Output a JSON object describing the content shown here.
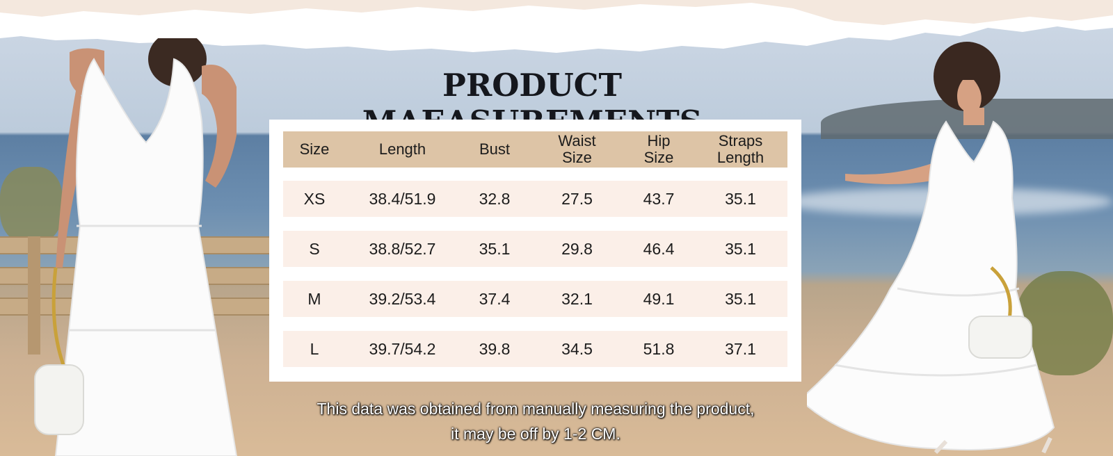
{
  "title": "PRODUCT MAEASUREMENTS",
  "table": {
    "headers": [
      "Size",
      "Length",
      "Bust",
      "Waist\nSize",
      "Hip\nSize",
      "Straps\nLength"
    ],
    "rows": [
      [
        "XS",
        "38.4/51.9",
        "32.8",
        "27.5",
        "43.7",
        "35.1"
      ],
      [
        "S",
        "38.8/52.7",
        "35.1",
        "29.8",
        "46.4",
        "35.1"
      ],
      [
        "M",
        "39.2/53.4",
        "37.4",
        "32.1",
        "49.1",
        "35.1"
      ],
      [
        "L",
        "39.7/54.2",
        "39.8",
        "34.5",
        "51.8",
        "37.1"
      ]
    ]
  },
  "note": {
    "line1": "This data was obtained from manually measuring the product,",
    "line2": "it may be off by 1-2 CM."
  },
  "colors": {
    "header_bg": "#ddc4a6",
    "row_bg": "#fbefe8",
    "title": "#15171d"
  }
}
